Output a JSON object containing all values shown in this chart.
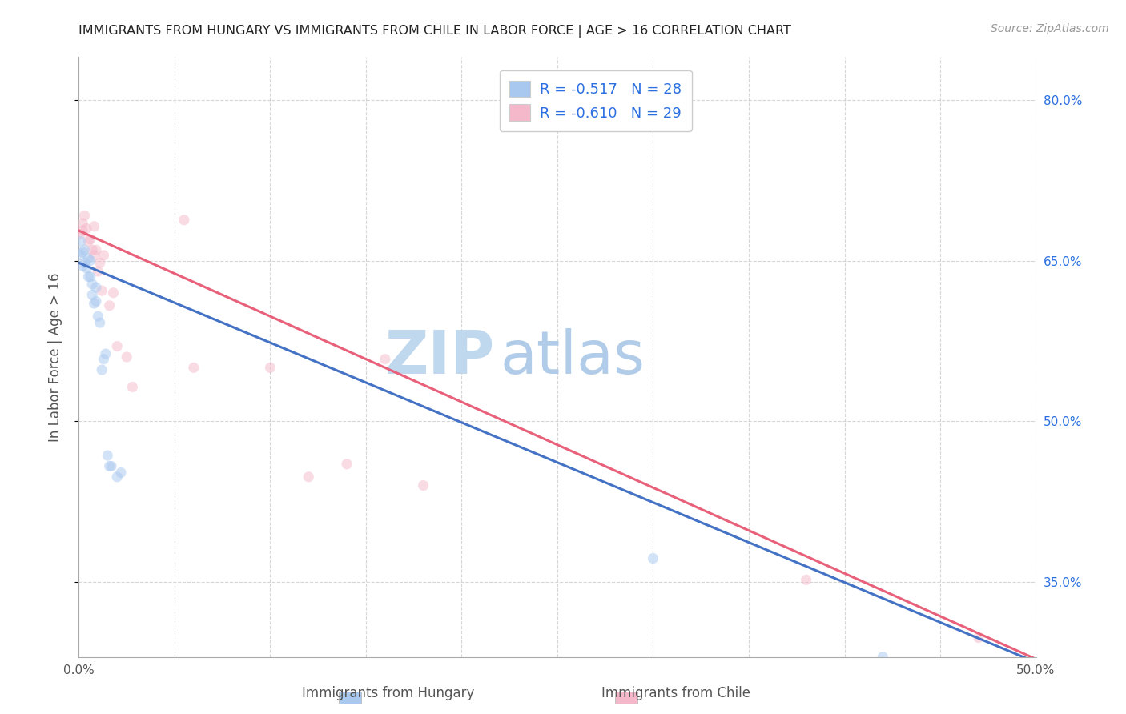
{
  "title": "IMMIGRANTS FROM HUNGARY VS IMMIGRANTS FROM CHILE IN LABOR FORCE | AGE > 16 CORRELATION CHART",
  "source": "Source: ZipAtlas.com",
  "ylabel": "In Labor Force | Age > 16",
  "xlim": [
    0.0,
    0.5
  ],
  "ylim": [
    0.28,
    0.84
  ],
  "xticks": [
    0.0,
    0.05,
    0.1,
    0.15,
    0.2,
    0.25,
    0.3,
    0.35,
    0.4,
    0.45,
    0.5
  ],
  "xticklabels": [
    "0.0%",
    "",
    "",
    "",
    "",
    "",
    "",
    "",
    "",
    "",
    "50.0%"
  ],
  "yticks": [
    0.35,
    0.5,
    0.65,
    0.8
  ],
  "yticklabels": [
    "35.0%",
    "50.0%",
    "65.0%",
    "80.0%"
  ],
  "hungary_scatter_x": [
    0.001,
    0.001,
    0.002,
    0.002,
    0.003,
    0.003,
    0.004,
    0.005,
    0.005,
    0.006,
    0.006,
    0.007,
    0.007,
    0.008,
    0.009,
    0.009,
    0.01,
    0.011,
    0.012,
    0.013,
    0.014,
    0.015,
    0.016,
    0.017,
    0.02,
    0.022,
    0.3,
    0.42
  ],
  "hungary_scatter_y": [
    0.668,
    0.655,
    0.658,
    0.645,
    0.66,
    0.648,
    0.643,
    0.652,
    0.635,
    0.65,
    0.635,
    0.628,
    0.618,
    0.61,
    0.625,
    0.612,
    0.598,
    0.592,
    0.548,
    0.558,
    0.563,
    0.468,
    0.458,
    0.458,
    0.448,
    0.452,
    0.372,
    0.28
  ],
  "chile_scatter_x": [
    0.001,
    0.002,
    0.002,
    0.003,
    0.004,
    0.005,
    0.006,
    0.007,
    0.008,
    0.008,
    0.009,
    0.01,
    0.011,
    0.012,
    0.013,
    0.016,
    0.018,
    0.02,
    0.025,
    0.028,
    0.055,
    0.06,
    0.1,
    0.12,
    0.14,
    0.16,
    0.18,
    0.38,
    0.47
  ],
  "chile_scatter_y": [
    0.675,
    0.685,
    0.678,
    0.692,
    0.68,
    0.668,
    0.67,
    0.66,
    0.655,
    0.682,
    0.66,
    0.64,
    0.648,
    0.622,
    0.655,
    0.608,
    0.62,
    0.57,
    0.56,
    0.532,
    0.688,
    0.55,
    0.55,
    0.448,
    0.46,
    0.558,
    0.44,
    0.352,
    0.298
  ],
  "hungary_R": -0.517,
  "hungary_N": 28,
  "chile_R": -0.61,
  "chile_N": 29,
  "hungary_color": "#a8c8f0",
  "chile_color": "#f5b8cb",
  "hungary_line_color": "#4472c4",
  "chile_line_color": "#e8607a",
  "hungary_line_x": [
    0.0,
    0.5
  ],
  "hungary_line_y": [
    0.648,
    0.275
  ],
  "chile_line_x": [
    0.0,
    0.5
  ],
  "chile_line_y": [
    0.678,
    0.278
  ],
  "scatter_size": 90,
  "scatter_alpha": 0.5,
  "background_color": "#ffffff",
  "grid_color": "#cccccc",
  "watermark_zip": "ZIP",
  "watermark_atlas": "atlas",
  "watermark_color": "#d0e4f5",
  "legend_color": "#2b6fe0"
}
